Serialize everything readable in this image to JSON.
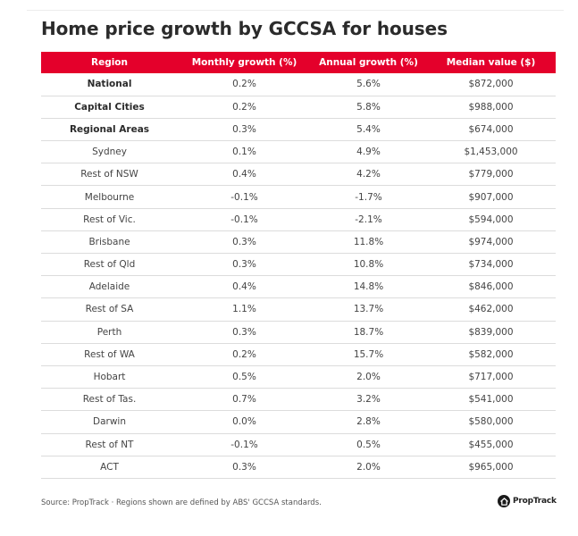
{
  "title": "Home price growth by GCCSA for houses",
  "colors": {
    "header_bg": "#e4002b",
    "header_text": "#ffffff"
  },
  "chart_data": {
    "type": "table",
    "title": "Home price growth by GCCSA for houses",
    "columns": [
      "Region",
      "Monthly growth (%)",
      "Annual growth (%)",
      "Median value ($)"
    ],
    "rows": [
      {
        "region": "National",
        "monthly": "0.2%",
        "annual": "5.6%",
        "median": "$872,000",
        "bold": true
      },
      {
        "region": "Capital Cities",
        "monthly": "0.2%",
        "annual": "5.8%",
        "median": "$988,000",
        "bold": true
      },
      {
        "region": "Regional Areas",
        "monthly": "0.3%",
        "annual": "5.4%",
        "median": "$674,000",
        "bold": true
      },
      {
        "region": "Sydney",
        "monthly": "0.1%",
        "annual": "4.9%",
        "median": "$1,453,000",
        "bold": false
      },
      {
        "region": "Rest of NSW",
        "monthly": "0.4%",
        "annual": "4.2%",
        "median": "$779,000",
        "bold": false
      },
      {
        "region": "Melbourne",
        "monthly": "-0.1%",
        "annual": "-1.7%",
        "median": "$907,000",
        "bold": false
      },
      {
        "region": "Rest of Vic.",
        "monthly": "-0.1%",
        "annual": "-2.1%",
        "median": "$594,000",
        "bold": false
      },
      {
        "region": "Brisbane",
        "monthly": "0.3%",
        "annual": "11.8%",
        "median": "$974,000",
        "bold": false
      },
      {
        "region": "Rest of Qld",
        "monthly": "0.3%",
        "annual": "10.8%",
        "median": "$734,000",
        "bold": false
      },
      {
        "region": "Adelaide",
        "monthly": "0.4%",
        "annual": "14.8%",
        "median": "$846,000",
        "bold": false
      },
      {
        "region": "Rest of SA",
        "monthly": "1.1%",
        "annual": "13.7%",
        "median": "$462,000",
        "bold": false
      },
      {
        "region": "Perth",
        "monthly": "0.3%",
        "annual": "18.7%",
        "median": "$839,000",
        "bold": false
      },
      {
        "region": "Rest of WA",
        "monthly": "0.2%",
        "annual": "15.7%",
        "median": "$582,000",
        "bold": false
      },
      {
        "region": "Hobart",
        "monthly": "0.5%",
        "annual": "2.0%",
        "median": "$717,000",
        "bold": false
      },
      {
        "region": "Rest of Tas.",
        "monthly": "0.7%",
        "annual": "3.2%",
        "median": "$541,000",
        "bold": false
      },
      {
        "region": "Darwin",
        "monthly": "0.0%",
        "annual": "2.8%",
        "median": "$580,000",
        "bold": false
      },
      {
        "region": "Rest of NT",
        "monthly": "-0.1%",
        "annual": "0.5%",
        "median": "$455,000",
        "bold": false
      },
      {
        "region": "ACT",
        "monthly": "0.3%",
        "annual": "2.0%",
        "median": "$965,000",
        "bold": false
      }
    ]
  },
  "footer": {
    "source": "Source: PropTrack · Regions shown are defined by ABS' GCCSA standards.",
    "brand": "PropTrack",
    "brand_icon": "house-icon"
  }
}
